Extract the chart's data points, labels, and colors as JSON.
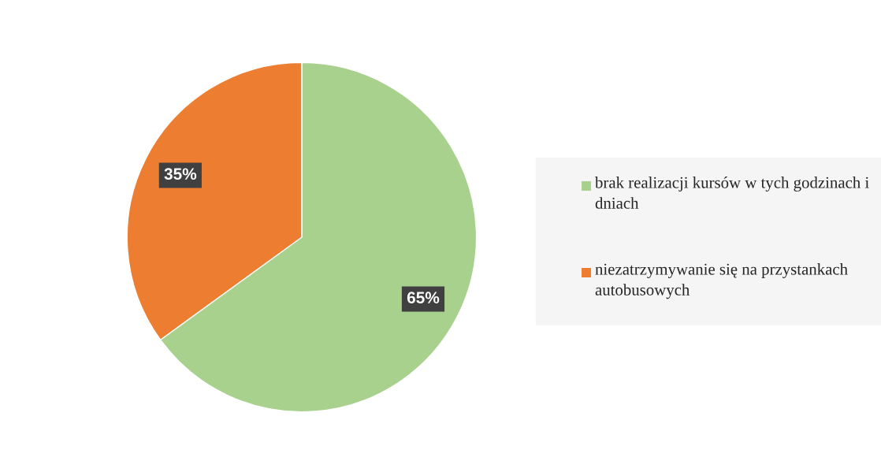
{
  "chart_data": {
    "type": "pie",
    "categories": [
      "brak realizacji kursów w tych godzinach i dniach",
      "niezatrzymywanie się na przystankach autobusowych"
    ],
    "values": [
      65,
      35
    ],
    "colors": [
      "#a9d18e",
      "#ed7d31"
    ],
    "value_labels": [
      "65%",
      "35%"
    ],
    "legend": "right"
  }
}
